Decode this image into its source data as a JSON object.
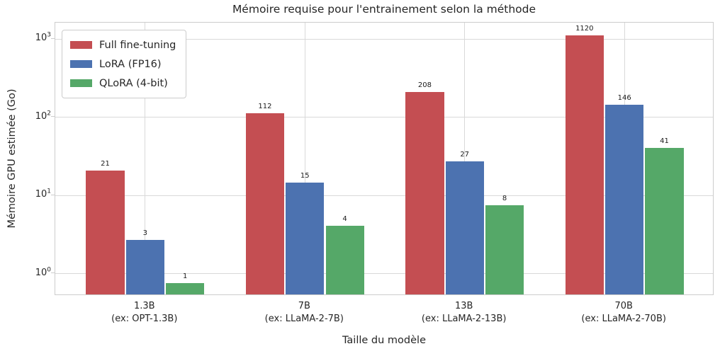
{
  "title": "Mémoire requise pour l'entrainement selon la méthode",
  "chart_data": {
    "type": "bar",
    "title": "Mémoire requise pour l'entrainement selon la méthode",
    "xlabel": "Taille du modèle",
    "ylabel": "Mémoire GPU estimée (Go)",
    "yscale": "log",
    "grid": true,
    "legend_position": "upper left",
    "ylim": [
      0.52,
      1615
    ],
    "ylim_log10": [
      -0.284,
      3.208
    ],
    "ytick_exponents": [
      0,
      1,
      2,
      3
    ],
    "xlim_units": [
      -0.5625,
      3.5625
    ],
    "bar_width_units": 0.25,
    "categories": [
      {
        "label": "1.3B",
        "sublabel": "(ex: OPT-1.3B)"
      },
      {
        "label": "7B",
        "sublabel": "(ex: LLaMA-2-7B)"
      },
      {
        "label": "13B",
        "sublabel": "(ex: LLaMA-2-13B)"
      },
      {
        "label": "70B",
        "sublabel": "(ex: LLaMA-2-70B)"
      }
    ],
    "series": [
      {
        "name": "Full fine-tuning",
        "color": "#c44e52",
        "values": [
          20.8,
          112,
          208,
          1120
        ],
        "bar_labels": [
          "21",
          "112",
          "208",
          "1120"
        ]
      },
      {
        "name": "LoRA (FP16)",
        "color": "#4c72b0",
        "values": [
          2.7,
          14.56,
          27.04,
          145.6
        ],
        "bar_labels": [
          "3",
          "15",
          "27",
          "146"
        ]
      },
      {
        "name": "QLoRA (4-bit)",
        "color": "#55a868",
        "values": [
          0.75,
          4.06,
          7.54,
          40.6
        ],
        "bar_labels": [
          "1",
          "4",
          "8",
          "41"
        ]
      }
    ]
  },
  "colors": {
    "background": "#ffffff",
    "grid": "#d9d9d9",
    "spine": "#cccccc",
    "text": "#262626",
    "bar_label_text": "#1a1a1a"
  }
}
